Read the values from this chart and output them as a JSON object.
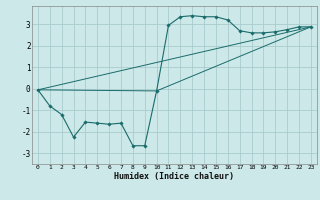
{
  "bg_color": "#cce8e8",
  "grid_color": "#aacccc",
  "line_color": "#1a6b6b",
  "marker_color": "#1a6b6b",
  "xlabel": "Humidex (Indice chaleur)",
  "xlim": [
    -0.5,
    23.5
  ],
  "ylim": [
    -3.5,
    3.85
  ],
  "yticks": [
    -3,
    -2,
    -1,
    0,
    1,
    2,
    3
  ],
  "xticks": [
    0,
    1,
    2,
    3,
    4,
    5,
    6,
    7,
    8,
    9,
    10,
    11,
    12,
    13,
    14,
    15,
    16,
    17,
    18,
    19,
    20,
    21,
    22,
    23
  ],
  "curve1_x": [
    0,
    1,
    2,
    3,
    4,
    5,
    6,
    7,
    8,
    9,
    10,
    11,
    12,
    13,
    14,
    15,
    16,
    17,
    18,
    19,
    20,
    21,
    22,
    23
  ],
  "curve1_y": [
    -0.05,
    -0.8,
    -1.2,
    -2.25,
    -1.55,
    -1.6,
    -1.65,
    -1.6,
    -2.65,
    -2.65,
    -0.1,
    2.95,
    3.35,
    3.4,
    3.35,
    3.35,
    3.2,
    2.7,
    2.6,
    2.6,
    2.65,
    2.75,
    2.88,
    2.88
  ],
  "line2_x": [
    0,
    23
  ],
  "line2_y": [
    -0.05,
    2.88
  ],
  "line3_x": [
    0,
    10,
    23
  ],
  "line3_y": [
    -0.05,
    -0.1,
    2.88
  ]
}
